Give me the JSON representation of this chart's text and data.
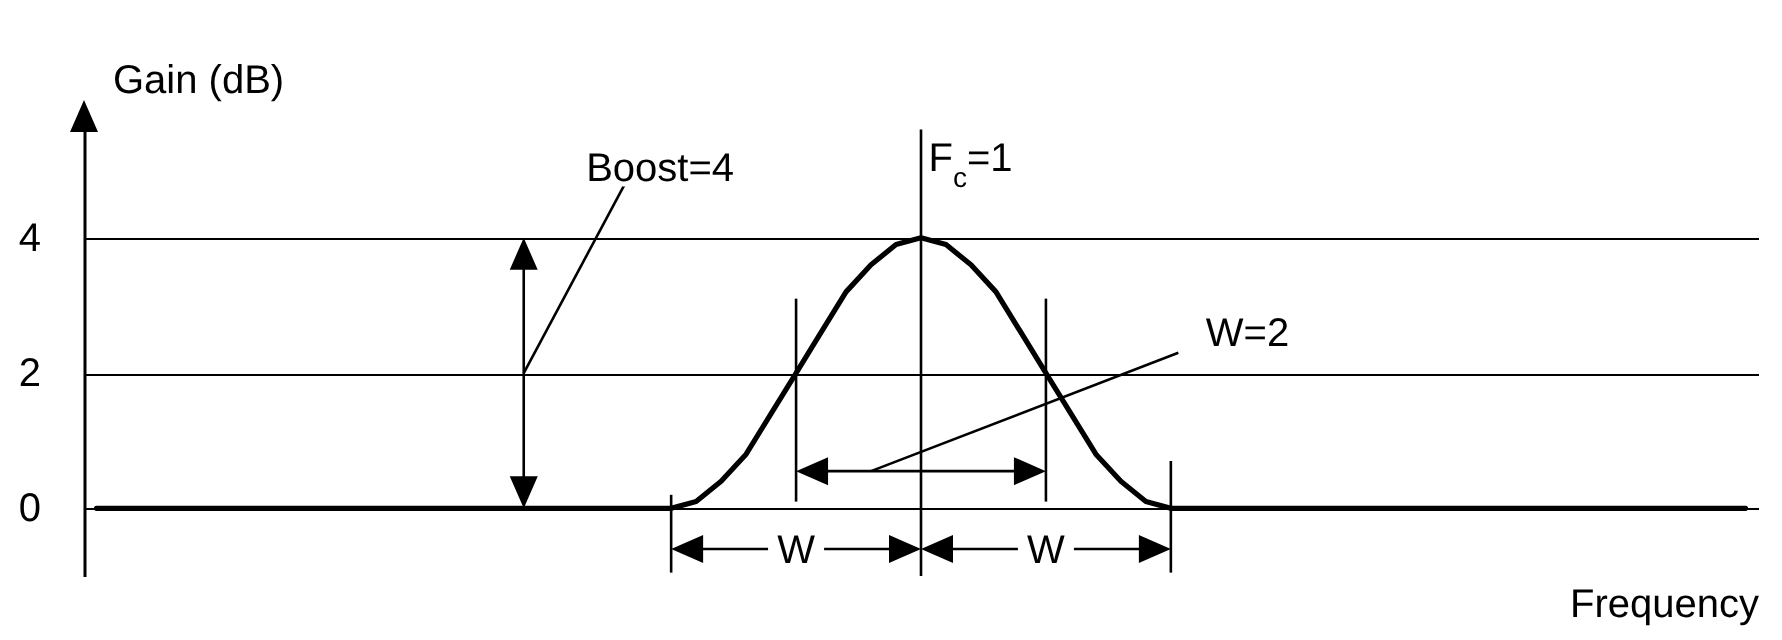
{
  "chart_data": {
    "type": "line",
    "ylabel": "Gain (dB)",
    "xlabel": "Frequency",
    "categories": [
      null,
      null,
      null,
      null,
      null,
      null,
      null,
      null,
      null,
      null,
      null,
      null,
      null,
      null,
      null,
      null,
      null,
      null,
      null,
      null,
      null,
      null,
      null,
      null,
      null,
      null,
      null,
      null,
      null,
      null,
      null,
      null,
      null,
      null,
      null,
      null,
      null,
      null,
      null,
      null,
      null,
      null,
      null,
      null,
      null,
      null,
      null,
      null,
      null,
      null,
      null,
      null,
      null,
      null,
      null,
      null,
      null,
      null,
      null,
      null,
      null,
      null,
      null,
      null,
      null,
      null,
      null
    ],
    "series": [
      {
        "color": "#000000",
        "values": [
          0,
          0,
          0,
          0,
          0,
          0,
          0,
          0,
          0,
          0,
          0,
          0,
          0,
          0,
          0,
          0,
          0,
          0,
          0,
          0,
          0,
          0,
          0,
          0,
          0.1,
          0.4,
          0.8,
          1.4,
          2,
          2.6,
          3.2,
          3.6,
          3.9,
          4,
          3.9,
          3.6,
          3.2,
          2.6,
          2,
          1.4,
          0.8,
          0.4,
          0.1,
          0,
          0,
          0,
          0,
          0,
          0,
          0,
          0,
          0,
          0,
          0,
          0,
          0,
          0,
          0,
          0,
          0,
          0,
          0,
          0,
          0,
          0,
          0,
          0
        ]
      }
    ],
    "ylim": [
      -1,
      5.8
    ],
    "yticks": [
      0,
      2,
      4
    ],
    "grid": "y",
    "legend": false,
    "marker": "none",
    "line_style": "solid",
    "annotations": [
      "Boost=4",
      "F$_{c}$=1",
      "W=2",
      "W",
      "W"
    ]
  }
}
